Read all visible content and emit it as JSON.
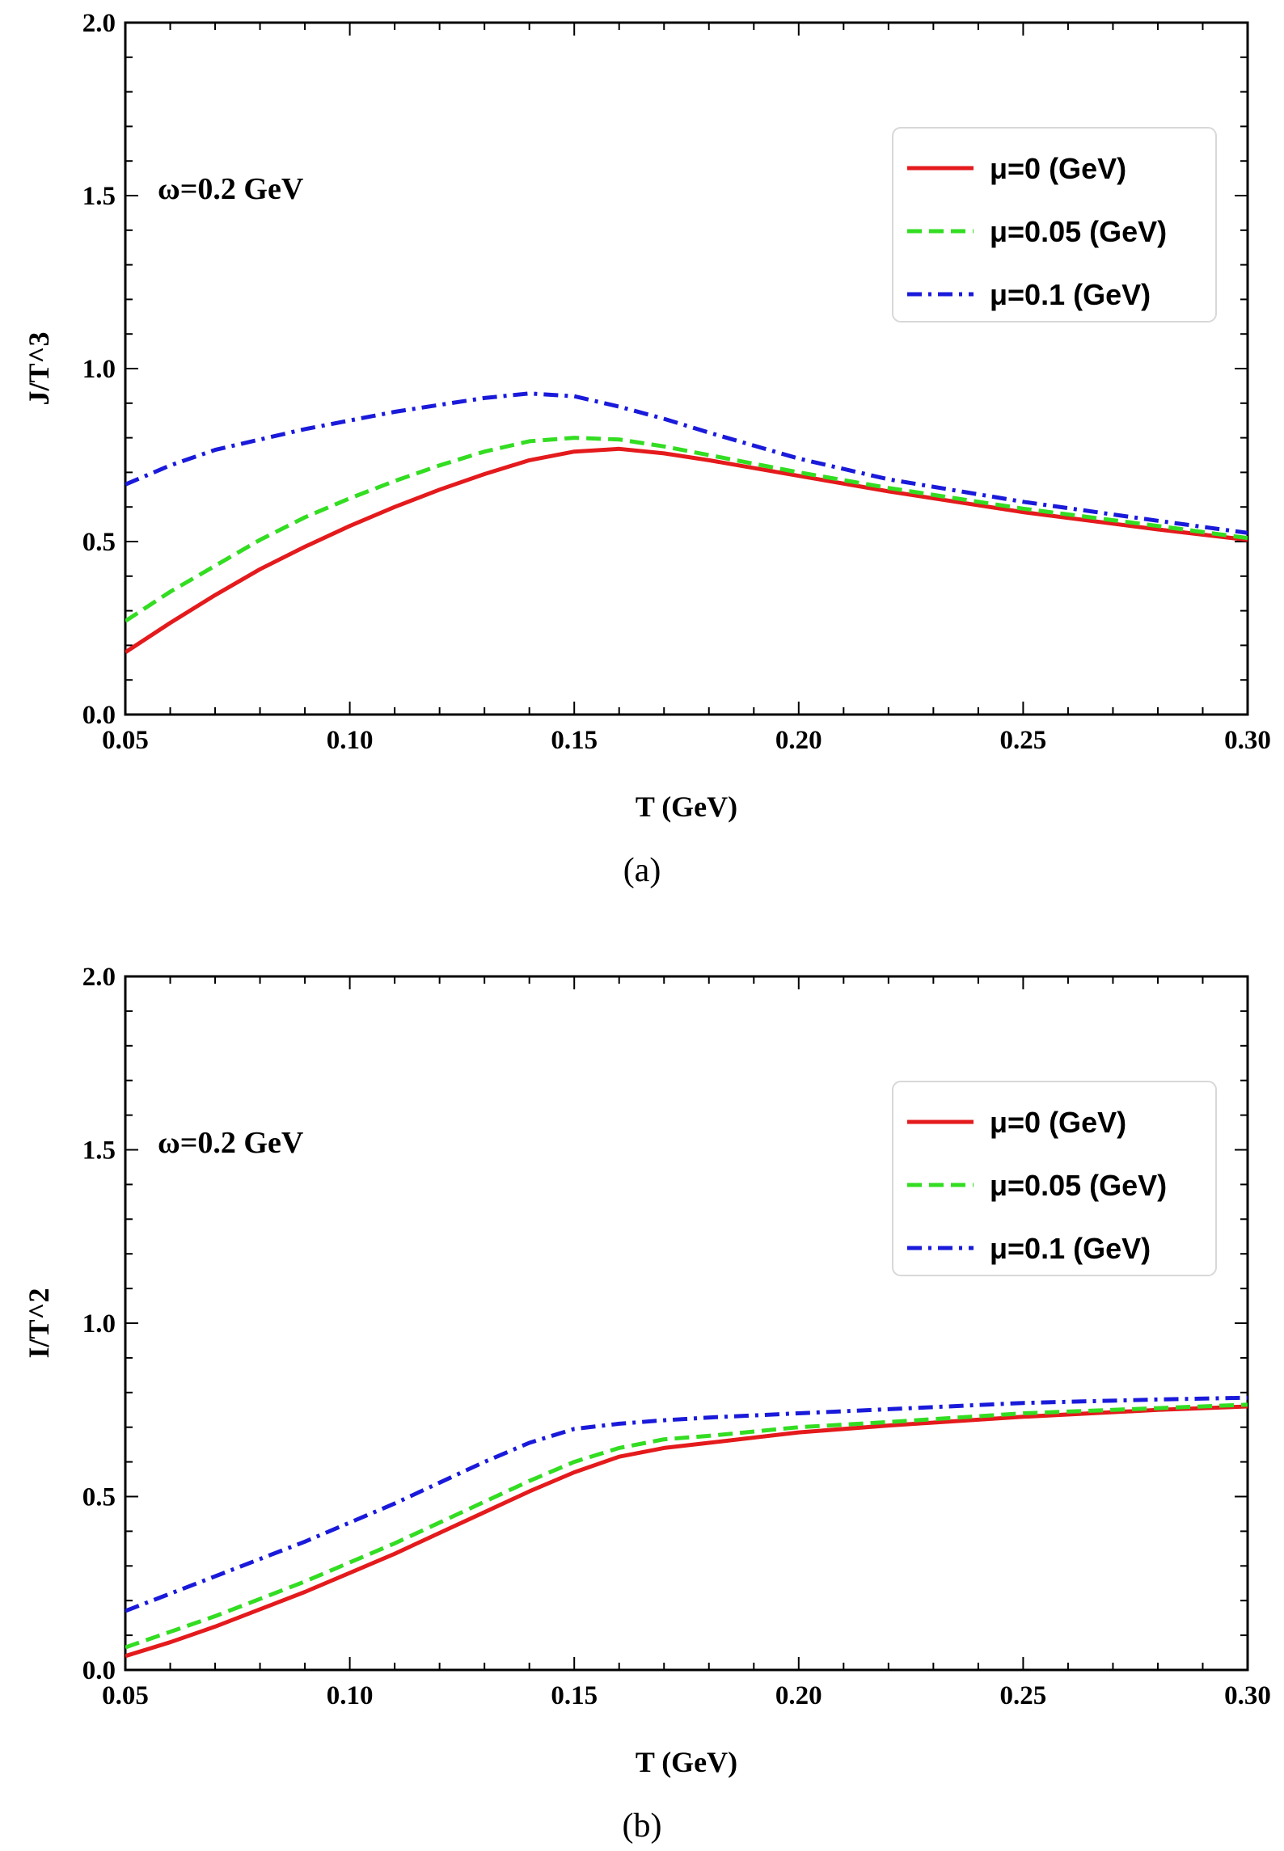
{
  "chart_data": [
    {
      "type": "line",
      "panel_label": "(a)",
      "xlabel": "T (GeV)",
      "ylabel": "J/T^3",
      "annotation": "ω=0.2 GeV",
      "xlim": [
        0.05,
        0.3
      ],
      "ylim": [
        0.0,
        2.0
      ],
      "xticks": [
        "0.05",
        "0.10",
        "0.15",
        "0.20",
        "0.25",
        "0.30"
      ],
      "yticks": [
        "0.0",
        "0.5",
        "1.0",
        "1.5",
        "2.0"
      ],
      "legend_position": "top-right",
      "x": [
        0.05,
        0.06,
        0.07,
        0.08,
        0.09,
        0.1,
        0.11,
        0.12,
        0.13,
        0.14,
        0.15,
        0.16,
        0.17,
        0.18,
        0.2,
        0.22,
        0.25,
        0.28,
        0.3
      ],
      "series": [
        {
          "name": "μ=0 (GeV)",
          "color": "#e41a1c",
          "style": "solid",
          "values": [
            0.18,
            0.265,
            0.345,
            0.42,
            0.485,
            0.545,
            0.6,
            0.65,
            0.695,
            0.735,
            0.76,
            0.768,
            0.755,
            0.735,
            0.69,
            0.645,
            0.585,
            0.535,
            0.505
          ]
        },
        {
          "name": "μ=0.05 (GeV)",
          "color": "#33dd22",
          "style": "dashed",
          "values": [
            0.27,
            0.355,
            0.43,
            0.505,
            0.57,
            0.625,
            0.675,
            0.72,
            0.76,
            0.79,
            0.8,
            0.795,
            0.775,
            0.75,
            0.7,
            0.655,
            0.595,
            0.545,
            0.51
          ]
        },
        {
          "name": "μ=0.1 (GeV)",
          "color": "#1a1adb",
          "style": "dashdot",
          "values": [
            0.665,
            0.72,
            0.765,
            0.795,
            0.825,
            0.85,
            0.875,
            0.895,
            0.915,
            0.928,
            0.92,
            0.89,
            0.855,
            0.815,
            0.74,
            0.68,
            0.615,
            0.56,
            0.525
          ]
        }
      ]
    },
    {
      "type": "line",
      "panel_label": "(b)",
      "xlabel": "T (GeV)",
      "ylabel": "I/T^2",
      "annotation": "ω=0.2 GeV",
      "xlim": [
        0.05,
        0.3
      ],
      "ylim": [
        0.0,
        2.0
      ],
      "xticks": [
        "0.05",
        "0.10",
        "0.15",
        "0.20",
        "0.25",
        "0.30"
      ],
      "yticks": [
        "0.0",
        "0.5",
        "1.0",
        "1.5",
        "2.0"
      ],
      "legend_position": "top-right",
      "x": [
        0.05,
        0.06,
        0.07,
        0.08,
        0.09,
        0.1,
        0.11,
        0.12,
        0.13,
        0.14,
        0.15,
        0.16,
        0.17,
        0.18,
        0.2,
        0.22,
        0.25,
        0.28,
        0.3
      ],
      "series": [
        {
          "name": "μ=0 (GeV)",
          "color": "#e41a1c",
          "style": "solid",
          "values": [
            0.04,
            0.08,
            0.125,
            0.175,
            0.225,
            0.28,
            0.335,
            0.395,
            0.455,
            0.515,
            0.57,
            0.615,
            0.64,
            0.655,
            0.685,
            0.705,
            0.73,
            0.75,
            0.76
          ]
        },
        {
          "name": "μ=0.05 (GeV)",
          "color": "#33dd22",
          "style": "dashed",
          "values": [
            0.065,
            0.11,
            0.155,
            0.205,
            0.255,
            0.31,
            0.365,
            0.425,
            0.485,
            0.545,
            0.6,
            0.64,
            0.665,
            0.675,
            0.7,
            0.715,
            0.74,
            0.755,
            0.765
          ]
        },
        {
          "name": "μ=0.1 (GeV)",
          "color": "#1a1adb",
          "style": "dashdot",
          "values": [
            0.17,
            0.22,
            0.27,
            0.32,
            0.37,
            0.425,
            0.48,
            0.54,
            0.6,
            0.655,
            0.695,
            0.71,
            0.72,
            0.728,
            0.74,
            0.752,
            0.77,
            0.78,
            0.785
          ]
        }
      ]
    }
  ]
}
